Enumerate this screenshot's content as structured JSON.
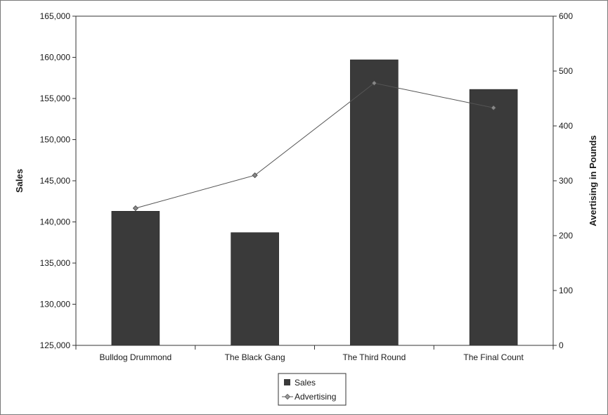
{
  "chart_data": {
    "type": "bar",
    "categories": [
      "Bulldog Drummond",
      "The Black Gang",
      "The Third Round",
      "The Final Count"
    ],
    "series": [
      {
        "name": "Sales",
        "type": "bar",
        "axis": "left",
        "values": [
          141300,
          138700,
          159700,
          156100
        ]
      },
      {
        "name": "Advertising",
        "type": "line",
        "axis": "right",
        "values": [
          250,
          310,
          478,
          433
        ]
      }
    ],
    "ylabel": "Sales",
    "y2label": "Avertising in Pounds",
    "ylim": [
      125000,
      165000
    ],
    "y2lim": [
      0,
      600
    ],
    "yticks": [
      "125,000",
      "130,000",
      "135,000",
      "140,000",
      "145,000",
      "150,000",
      "155,000",
      "160,000",
      "165,000"
    ],
    "y2ticks": [
      "0",
      "100",
      "200",
      "300",
      "400",
      "500",
      "600"
    ],
    "grid": false,
    "legend_position": "bottom-center",
    "colors": {
      "bar": "#3a3a3a",
      "line": "#555555",
      "marker": "#888888"
    }
  }
}
